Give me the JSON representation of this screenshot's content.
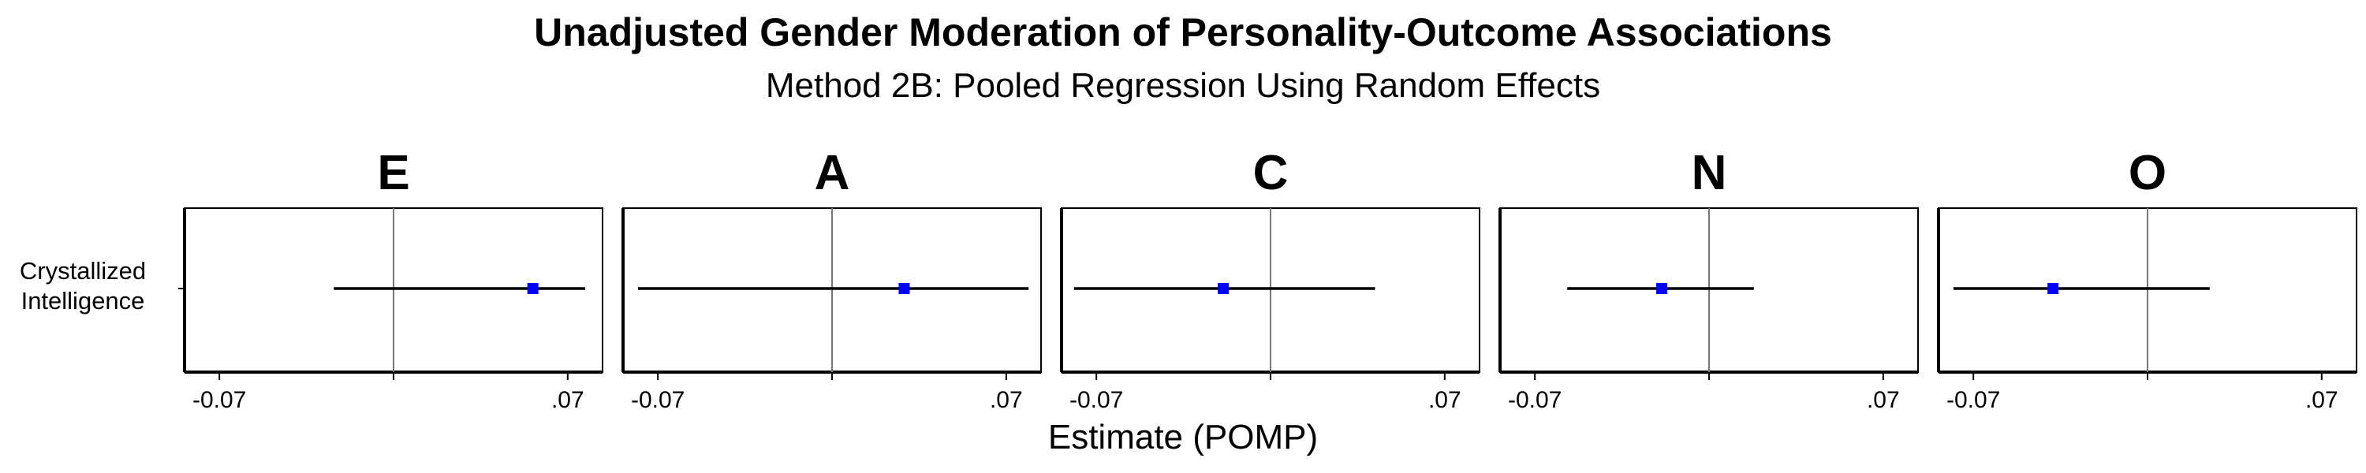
{
  "chart_data": {
    "type": "forest",
    "title": "Unadjusted Gender Moderation of Personality-Outcome Associations",
    "subtitle": "Method 2B: Pooled Regression Using Random Effects",
    "xlabel": "Estimate (POMP)",
    "category": "Crystallized Intelligence",
    "xlim": [
      -0.084,
      0.084
    ],
    "xticks": [
      -0.07,
      0,
      0.07
    ],
    "xtick_labels": [
      "-0.07",
      "",
      ".07"
    ],
    "ref_line": 0,
    "point_color": "#0000ff",
    "panels": [
      {
        "name": "E",
        "estimate": 0.056,
        "lower": -0.024,
        "upper": 0.077
      },
      {
        "name": "A",
        "estimate": 0.029,
        "lower": -0.078,
        "upper": 0.079
      },
      {
        "name": "C",
        "estimate": -0.019,
        "lower": -0.079,
        "upper": 0.042
      },
      {
        "name": "N",
        "estimate": -0.019,
        "lower": -0.057,
        "upper": 0.018
      },
      {
        "name": "O",
        "estimate": -0.038,
        "lower": -0.078,
        "upper": 0.025
      }
    ]
  }
}
